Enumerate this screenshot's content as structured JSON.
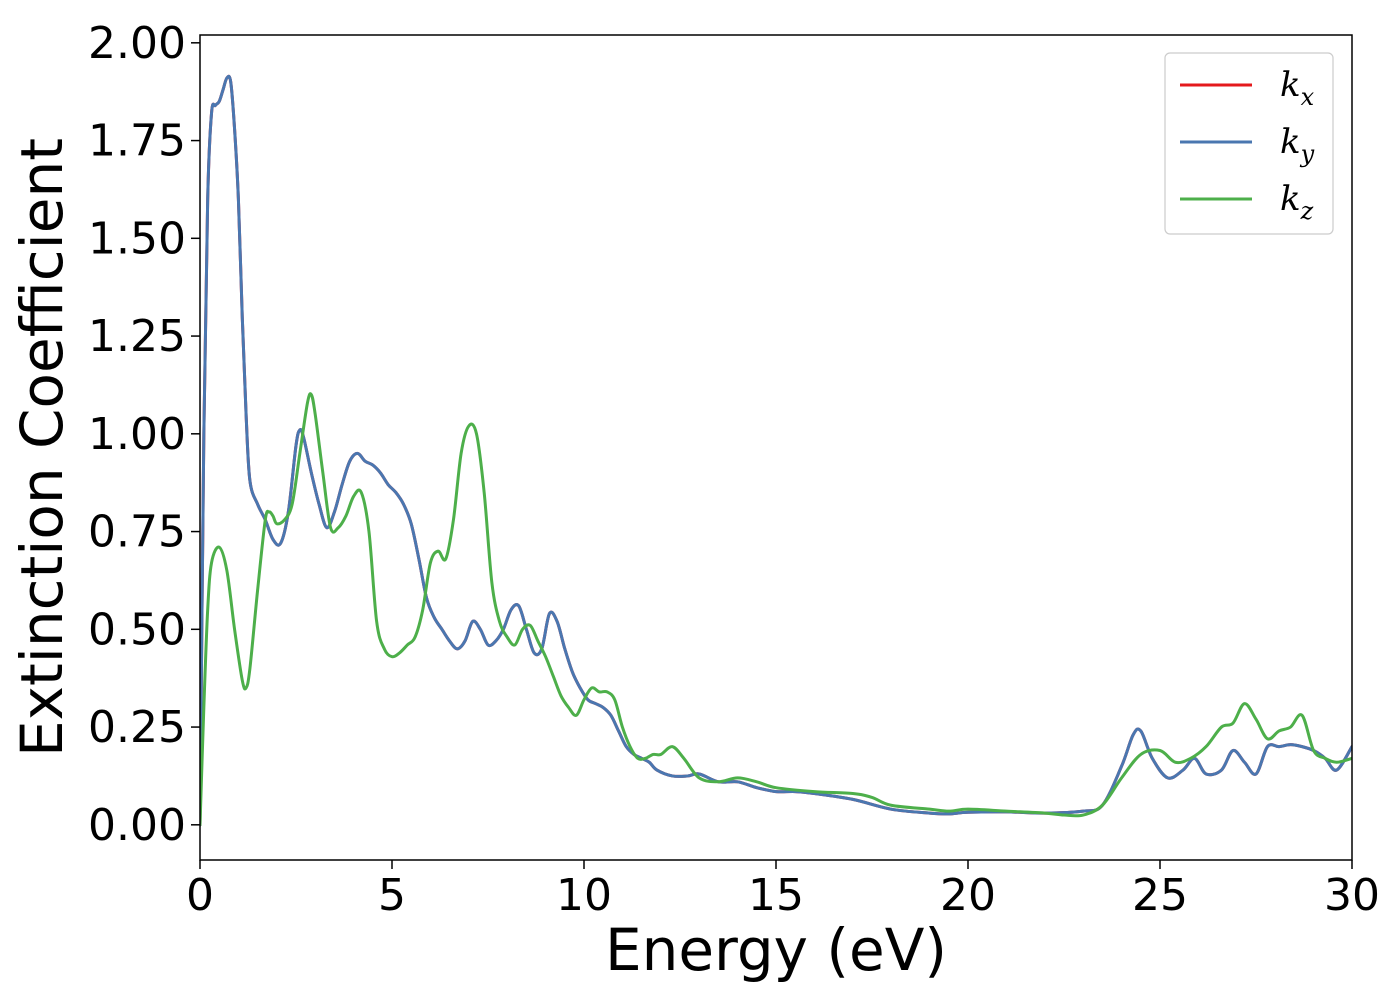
{
  "chart_data": {
    "type": "line",
    "xlabel": "Energy (eV)",
    "ylabel": "Extinction Coefficient",
    "xlim": [
      0,
      30
    ],
    "ylim": [
      -0.09,
      2.02
    ],
    "xticks": [
      0,
      5,
      10,
      15,
      20,
      25,
      30
    ],
    "xtick_labels": [
      "0",
      "5",
      "10",
      "15",
      "20",
      "25",
      "30"
    ],
    "yticks": [
      0,
      0.25,
      0.5,
      0.75,
      1.0,
      1.25,
      1.5,
      1.75,
      2.0
    ],
    "ytick_labels": [
      "0.00",
      "0.25",
      "0.50",
      "0.75",
      "1.00",
      "1.25",
      "1.50",
      "1.75",
      "2.00"
    ],
    "grid": false,
    "legend_position": "top-right",
    "series": [
      {
        "name": "k",
        "subscript": "x",
        "color": "#e41a1c",
        "x": [
          0,
          0.1,
          0.2,
          0.3,
          0.4,
          0.5,
          0.6,
          0.7,
          0.8,
          0.9,
          1.0,
          1.1,
          1.2,
          1.3,
          1.5,
          1.7,
          1.9,
          2.1,
          2.3,
          2.5,
          2.6,
          2.7,
          2.9,
          3.1,
          3.3,
          3.5,
          3.7,
          3.9,
          4.1,
          4.3,
          4.5,
          4.7,
          4.9,
          5.1,
          5.3,
          5.5,
          5.7,
          5.9,
          6.1,
          6.3,
          6.5,
          6.7,
          6.9,
          7.1,
          7.3,
          7.5,
          7.7,
          7.9,
          8.1,
          8.3,
          8.5,
          8.7,
          8.9,
          9.1,
          9.3,
          9.5,
          9.7,
          9.9,
          10.1,
          10.3,
          10.5,
          10.7,
          10.9,
          11.1,
          11.3,
          11.5,
          11.7,
          11.9,
          12.3,
          12.7,
          13.0,
          13.5,
          14.0,
          14.5,
          15.0,
          15.5,
          16.0,
          17.0,
          18.0,
          19.0,
          19.5,
          20.0,
          21.0,
          22.0,
          23.0,
          23.5,
          24.0,
          24.3,
          24.5,
          24.8,
          25.2,
          25.6,
          25.9,
          26.2,
          26.6,
          26.9,
          27.2,
          27.5,
          27.8,
          28.1,
          28.4,
          28.7,
          29.0,
          29.3,
          29.6,
          30.0
        ],
        "y": [
          0,
          1.0,
          1.6,
          1.82,
          1.84,
          1.85,
          1.88,
          1.91,
          1.9,
          1.78,
          1.6,
          1.3,
          1.05,
          0.88,
          0.82,
          0.78,
          0.73,
          0.72,
          0.8,
          0.97,
          1.01,
          0.99,
          0.9,
          0.82,
          0.76,
          0.8,
          0.87,
          0.93,
          0.95,
          0.93,
          0.92,
          0.9,
          0.87,
          0.85,
          0.82,
          0.77,
          0.68,
          0.58,
          0.53,
          0.5,
          0.47,
          0.45,
          0.47,
          0.52,
          0.5,
          0.46,
          0.47,
          0.5,
          0.55,
          0.56,
          0.5,
          0.44,
          0.45,
          0.54,
          0.52,
          0.45,
          0.39,
          0.35,
          0.32,
          0.31,
          0.3,
          0.28,
          0.24,
          0.2,
          0.18,
          0.17,
          0.16,
          0.14,
          0.125,
          0.125,
          0.13,
          0.11,
          0.11,
          0.095,
          0.085,
          0.085,
          0.08,
          0.065,
          0.04,
          0.03,
          0.028,
          0.032,
          0.033,
          0.03,
          0.035,
          0.05,
          0.15,
          0.23,
          0.24,
          0.17,
          0.12,
          0.14,
          0.17,
          0.13,
          0.14,
          0.19,
          0.16,
          0.13,
          0.2,
          0.2,
          0.205,
          0.2,
          0.19,
          0.17,
          0.14,
          0.2
        ]
      },
      {
        "name": "k",
        "subscript": "y",
        "color": "#4a77b0",
        "x": [
          0,
          0.1,
          0.2,
          0.3,
          0.4,
          0.5,
          0.6,
          0.7,
          0.8,
          0.9,
          1.0,
          1.1,
          1.2,
          1.3,
          1.5,
          1.7,
          1.9,
          2.1,
          2.3,
          2.5,
          2.6,
          2.7,
          2.9,
          3.1,
          3.3,
          3.5,
          3.7,
          3.9,
          4.1,
          4.3,
          4.5,
          4.7,
          4.9,
          5.1,
          5.3,
          5.5,
          5.7,
          5.9,
          6.1,
          6.3,
          6.5,
          6.7,
          6.9,
          7.1,
          7.3,
          7.5,
          7.7,
          7.9,
          8.1,
          8.3,
          8.5,
          8.7,
          8.9,
          9.1,
          9.3,
          9.5,
          9.7,
          9.9,
          10.1,
          10.3,
          10.5,
          10.7,
          10.9,
          11.1,
          11.3,
          11.5,
          11.7,
          11.9,
          12.3,
          12.7,
          13.0,
          13.5,
          14.0,
          14.5,
          15.0,
          15.5,
          16.0,
          17.0,
          18.0,
          19.0,
          19.5,
          20.0,
          21.0,
          22.0,
          23.0,
          23.5,
          24.0,
          24.3,
          24.5,
          24.8,
          25.2,
          25.6,
          25.9,
          26.2,
          26.6,
          26.9,
          27.2,
          27.5,
          27.8,
          28.1,
          28.4,
          28.7,
          29.0,
          29.3,
          29.6,
          30.0
        ],
        "y": [
          0,
          1.0,
          1.6,
          1.82,
          1.84,
          1.85,
          1.88,
          1.91,
          1.9,
          1.78,
          1.6,
          1.3,
          1.05,
          0.88,
          0.82,
          0.78,
          0.73,
          0.72,
          0.8,
          0.97,
          1.01,
          0.99,
          0.9,
          0.82,
          0.76,
          0.8,
          0.87,
          0.93,
          0.95,
          0.93,
          0.92,
          0.9,
          0.87,
          0.85,
          0.82,
          0.77,
          0.68,
          0.58,
          0.53,
          0.5,
          0.47,
          0.45,
          0.47,
          0.52,
          0.5,
          0.46,
          0.47,
          0.5,
          0.55,
          0.56,
          0.5,
          0.44,
          0.45,
          0.54,
          0.52,
          0.45,
          0.39,
          0.35,
          0.32,
          0.31,
          0.3,
          0.28,
          0.24,
          0.2,
          0.18,
          0.17,
          0.16,
          0.14,
          0.125,
          0.125,
          0.13,
          0.11,
          0.11,
          0.095,
          0.085,
          0.085,
          0.08,
          0.065,
          0.04,
          0.03,
          0.028,
          0.032,
          0.033,
          0.03,
          0.035,
          0.05,
          0.15,
          0.23,
          0.24,
          0.17,
          0.12,
          0.14,
          0.17,
          0.13,
          0.14,
          0.19,
          0.16,
          0.13,
          0.2,
          0.2,
          0.205,
          0.2,
          0.19,
          0.17,
          0.14,
          0.2
        ]
      },
      {
        "name": "k",
        "subscript": "z",
        "color": "#4daf4a",
        "x": [
          0,
          0.1,
          0.2,
          0.3,
          0.5,
          0.7,
          0.9,
          1.1,
          1.2,
          1.3,
          1.5,
          1.7,
          1.8,
          1.9,
          2.0,
          2.2,
          2.4,
          2.6,
          2.8,
          2.9,
          3.0,
          3.2,
          3.4,
          3.6,
          3.8,
          4.0,
          4.2,
          4.4,
          4.6,
          4.8,
          5.0,
          5.2,
          5.4,
          5.6,
          5.8,
          6.0,
          6.2,
          6.4,
          6.6,
          6.8,
          7.0,
          7.2,
          7.4,
          7.6,
          7.8,
          8.0,
          8.2,
          8.4,
          8.6,
          8.8,
          9.0,
          9.2,
          9.4,
          9.6,
          9.8,
          10.0,
          10.2,
          10.4,
          10.6,
          10.8,
          11.0,
          11.2,
          11.4,
          11.6,
          11.8,
          12.0,
          12.3,
          12.6,
          13.0,
          13.5,
          14.0,
          14.5,
          15.0,
          16.0,
          17.0,
          17.5,
          18.0,
          19.0,
          19.5,
          20.0,
          21.0,
          22.0,
          22.5,
          23.0,
          23.5,
          24.0,
          24.5,
          25.0,
          25.4,
          25.8,
          26.2,
          26.6,
          26.9,
          27.2,
          27.5,
          27.8,
          28.1,
          28.4,
          28.7,
          29.0,
          29.3,
          29.6,
          30.0
        ],
        "y": [
          0,
          0.3,
          0.55,
          0.67,
          0.71,
          0.65,
          0.5,
          0.37,
          0.35,
          0.4,
          0.6,
          0.78,
          0.8,
          0.79,
          0.77,
          0.78,
          0.82,
          0.95,
          1.08,
          1.1,
          1.05,
          0.9,
          0.76,
          0.76,
          0.79,
          0.84,
          0.85,
          0.75,
          0.52,
          0.45,
          0.43,
          0.44,
          0.46,
          0.48,
          0.55,
          0.67,
          0.7,
          0.68,
          0.78,
          0.95,
          1.02,
          1.0,
          0.85,
          0.62,
          0.52,
          0.48,
          0.46,
          0.5,
          0.51,
          0.47,
          0.43,
          0.38,
          0.33,
          0.3,
          0.28,
          0.32,
          0.35,
          0.34,
          0.34,
          0.32,
          0.25,
          0.2,
          0.17,
          0.17,
          0.18,
          0.18,
          0.2,
          0.17,
          0.12,
          0.11,
          0.12,
          0.11,
          0.095,
          0.085,
          0.08,
          0.07,
          0.05,
          0.04,
          0.035,
          0.04,
          0.035,
          0.03,
          0.025,
          0.025,
          0.05,
          0.12,
          0.18,
          0.19,
          0.16,
          0.17,
          0.2,
          0.25,
          0.26,
          0.31,
          0.27,
          0.22,
          0.24,
          0.25,
          0.28,
          0.19,
          0.17,
          0.16,
          0.17
        ]
      }
    ]
  }
}
